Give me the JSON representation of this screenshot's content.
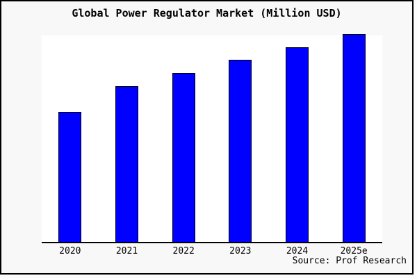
{
  "title": "Global Power Regulator Market (Million USD)",
  "source_note": "Source: Prof Research",
  "colors": {
    "background": "#fcfcfc",
    "frame_fill": "#f8f8f8",
    "frame_border": "#000000",
    "plot_fill": "#ffffff",
    "axis": "#000000",
    "bar_fill": "#0000ff",
    "bar_border": "#000000",
    "text": "#000000"
  },
  "chart_data": {
    "type": "bar",
    "title": "Global Power Regulator Market (Million USD)",
    "categories": [
      "2020",
      "2021",
      "2022",
      "2023",
      "2024",
      "2025e"
    ],
    "values": [
      188,
      225,
      244,
      263,
      281,
      300
    ],
    "value_scale_note": "No y-axis ticks or value labels are shown in the image; values are relative bar heights in arbitrary units.",
    "xlabel": "",
    "ylabel": "",
    "ylim": [
      0,
      300
    ],
    "grid": false,
    "legend": false,
    "annotations": [
      "Source: Prof Research"
    ]
  }
}
